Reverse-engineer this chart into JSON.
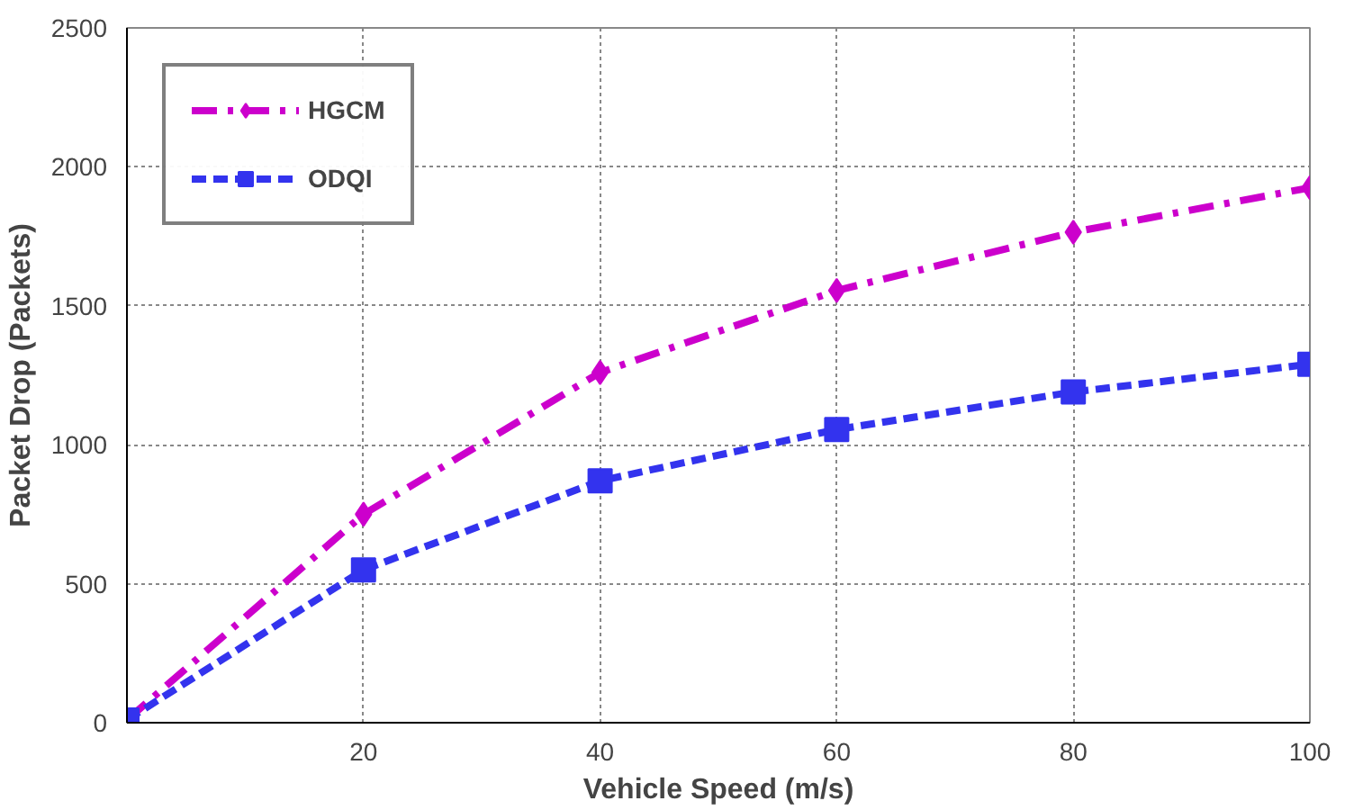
{
  "chart_data": {
    "type": "line",
    "xlabel": "Vehicle Speed (m/s)",
    "ylabel": "Packet Drop (Packets)",
    "x": [
      0,
      20,
      40,
      60,
      80,
      100
    ],
    "series": [
      {
        "name": "HGCM",
        "color": "#cc00cc",
        "values": [
          10,
          750,
          1260,
          1555,
          1765,
          1925
        ],
        "marker": "diamond",
        "line_style": "dashdot"
      },
      {
        "name": "ODQI",
        "color": "#3333ee",
        "values": [
          10,
          550,
          870,
          1055,
          1190,
          1290
        ],
        "marker": "square",
        "line_style": "dashed"
      }
    ],
    "xlim": [
      0,
      100
    ],
    "xticks": [
      20,
      40,
      60,
      80,
      100
    ],
    "ylim": [
      0,
      2500
    ],
    "yticks": [
      0,
      500,
      1000,
      1500,
      2000,
      2500
    ],
    "grid": true,
    "legend": "top left"
  }
}
